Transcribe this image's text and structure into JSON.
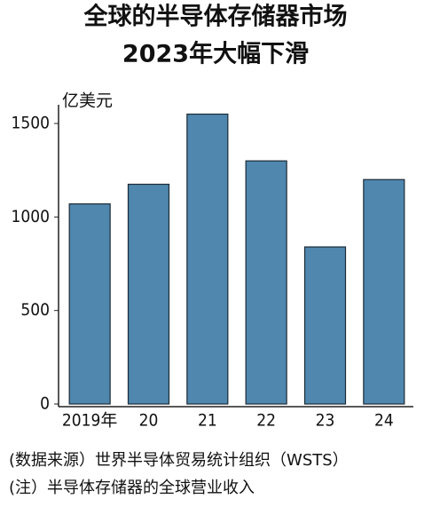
{
  "chart_data": {
    "type": "bar",
    "title": [
      "全球的半导体存储器市场",
      "2023年大幅下滑"
    ],
    "y_label": "亿美元",
    "categories": [
      "2019年",
      "20",
      "21",
      "22",
      "23",
      "24"
    ],
    "values": [
      1070,
      1175,
      1550,
      1300,
      840,
      1200
    ],
    "color": "#4f87ae",
    "ylim": [
      0,
      1600
    ],
    "yticks": [
      0,
      500,
      1000,
      1500
    ],
    "grid": false,
    "notes": [
      "(数据来源）世界半导体贸易统计组织（WSTS）",
      "(注）半导体存储器的全球营业收入"
    ]
  }
}
